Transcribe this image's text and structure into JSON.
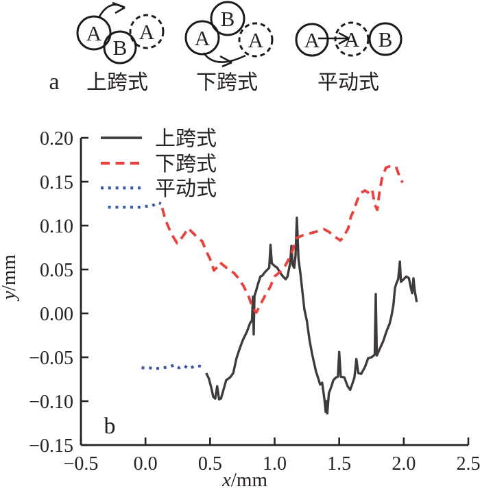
{
  "panel_a": {
    "label": "a",
    "diagrams": [
      {
        "caption": "上跨式",
        "motion": "arc-over-top",
        "circle_labels": [
          "A",
          "B",
          "A"
        ]
      },
      {
        "caption": "下跨式",
        "motion": "arc-under-bottom",
        "circle_labels": [
          "A",
          "B",
          "A"
        ]
      },
      {
        "caption": "平动式",
        "motion": "straight-right",
        "circle_labels": [
          "A",
          "A",
          "B"
        ]
      }
    ]
  },
  "panel_b_label": "b",
  "colors": {
    "axis_text": "#26211f",
    "series_solid": "#3f3b3a",
    "series_dashed": "#e8403c",
    "series_dotted": "#3b5aa6"
  },
  "chart_data": {
    "type": "line",
    "title": "",
    "xlabel_var": "x",
    "xlabel_unit": "/mm",
    "ylabel_var": "y",
    "ylabel_unit": "/mm",
    "xlim": [
      -0.5,
      2.5
    ],
    "ylim": [
      -0.15,
      0.2
    ],
    "grid": false,
    "legend_position": "top-left-inside",
    "xticks": [
      {
        "v": -0.5,
        "label": "−0.5"
      },
      {
        "v": 0.0,
        "label": "0.0"
      },
      {
        "v": 0.5,
        "label": "0.5"
      },
      {
        "v": 1.0,
        "label": "1.0"
      },
      {
        "v": 1.5,
        "label": "1.5"
      },
      {
        "v": 2.0,
        "label": "2.0"
      },
      {
        "v": 2.5,
        "label": "2.5"
      }
    ],
    "yticks": [
      {
        "v": 0.2,
        "label": "0.20"
      },
      {
        "v": 0.15,
        "label": "0.15"
      },
      {
        "v": 0.1,
        "label": "0.10"
      },
      {
        "v": 0.05,
        "label": "0.05"
      },
      {
        "v": 0.0,
        "label": "0.00"
      },
      {
        "v": -0.05,
        "label": "−0.05"
      },
      {
        "v": -0.1,
        "label": "−0.10"
      },
      {
        "v": -0.15,
        "label": "−0.15"
      }
    ],
    "series": [
      {
        "name": "上跨式",
        "style": "solid",
        "color": "#3f3b3a",
        "width": 3.4,
        "dash": "",
        "segments": [
          [
            [
              0.47,
              -0.068
            ],
            [
              0.49,
              -0.074
            ],
            [
              0.51,
              -0.085
            ],
            [
              0.525,
              -0.095
            ],
            [
              0.54,
              -0.097
            ],
            [
              0.555,
              -0.083
            ],
            [
              0.57,
              -0.098
            ],
            [
              0.585,
              -0.097
            ],
            [
              0.6,
              -0.089
            ],
            [
              0.625,
              -0.076
            ],
            [
              0.655,
              -0.073
            ],
            [
              0.68,
              -0.068
            ],
            [
              0.705,
              -0.051
            ],
            [
              0.73,
              -0.04
            ],
            [
              0.755,
              -0.03
            ],
            [
              0.785,
              -0.021
            ],
            [
              0.81,
              -0.011
            ],
            [
              0.825,
              -0.008
            ],
            [
              0.832,
              0.019
            ],
            [
              0.838,
              -0.024
            ],
            [
              0.844,
              0.02
            ],
            [
              0.855,
              0.025
            ],
            [
              0.87,
              0.033
            ],
            [
              0.89,
              0.042
            ],
            [
              0.905,
              0.043
            ],
            [
              0.925,
              0.047
            ],
            [
              0.945,
              0.05
            ],
            [
              0.958,
              0.052
            ],
            [
              0.968,
              0.078
            ],
            [
              0.978,
              0.057
            ],
            [
              1.0,
              0.054
            ],
            [
              1.02,
              0.052
            ],
            [
              1.04,
              0.047
            ],
            [
              1.065,
              0.042
            ],
            [
              1.085,
              0.039
            ],
            [
              1.1,
              0.042
            ],
            [
              1.12,
              0.057
            ],
            [
              1.13,
              0.077
            ],
            [
              1.14,
              0.055
            ],
            [
              1.152,
              0.052
            ],
            [
              1.162,
              0.066
            ],
            [
              1.172,
              0.109
            ],
            [
              1.185,
              0.062
            ],
            [
              1.2,
              0.045
            ],
            [
              1.215,
              0.025
            ],
            [
              1.23,
              0.005
            ],
            [
              1.25,
              -0.009
            ],
            [
              1.27,
              -0.03
            ],
            [
              1.29,
              -0.046
            ],
            [
              1.305,
              -0.056
            ],
            [
              1.32,
              -0.066
            ],
            [
              1.34,
              -0.075
            ],
            [
              1.352,
              -0.081
            ],
            [
              1.368,
              -0.079
            ],
            [
              1.385,
              -0.097
            ],
            [
              1.395,
              -0.112
            ],
            [
              1.402,
              -0.1
            ],
            [
              1.408,
              -0.114
            ],
            [
              1.42,
              -0.091
            ],
            [
              1.44,
              -0.083
            ],
            [
              1.455,
              -0.076
            ],
            [
              1.475,
              -0.073
            ],
            [
              1.49,
              -0.072
            ],
            [
              1.5,
              -0.044
            ],
            [
              1.512,
              -0.072
            ],
            [
              1.54,
              -0.073
            ],
            [
              1.565,
              -0.083
            ],
            [
              1.585,
              -0.087
            ],
            [
              1.6,
              -0.081
            ],
            [
              1.618,
              -0.073
            ],
            [
              1.633,
              -0.052
            ],
            [
              1.648,
              -0.068
            ],
            [
              1.67,
              -0.069
            ],
            [
              1.7,
              -0.061
            ],
            [
              1.724,
              -0.051
            ],
            [
              1.75,
              -0.05
            ],
            [
              1.775,
              -0.047
            ],
            [
              1.783,
              0.022
            ],
            [
              1.791,
              -0.048
            ],
            [
              1.815,
              -0.04
            ],
            [
              1.84,
              -0.032
            ],
            [
              1.865,
              -0.021
            ],
            [
              1.89,
              -0.012
            ],
            [
              1.905,
              -0.003
            ],
            [
              1.92,
              0.01
            ],
            [
              1.932,
              0.029
            ],
            [
              1.945,
              0.035
            ],
            [
              1.957,
              0.039
            ],
            [
              1.97,
              0.059
            ],
            [
              1.978,
              0.036
            ],
            [
              2.0,
              0.039
            ],
            [
              2.02,
              0.042
            ],
            [
              2.04,
              0.04
            ],
            [
              2.055,
              0.029
            ],
            [
              2.065,
              0.023
            ],
            [
              2.075,
              0.04
            ],
            [
              2.085,
              0.026
            ],
            [
              2.1,
              0.013
            ]
          ]
        ]
      },
      {
        "name": "下跨式",
        "style": "dashed",
        "color": "#e8403c",
        "width": 3.8,
        "dash": "13 8.5",
        "segments": [
          [
            [
              0.13,
              0.12
            ],
            [
              0.155,
              0.106
            ],
            [
              0.185,
              0.096
            ],
            [
              0.215,
              0.087
            ],
            [
              0.245,
              0.08
            ],
            [
              0.27,
              0.084
            ],
            [
              0.3,
              0.09
            ],
            [
              0.33,
              0.097
            ],
            [
              0.365,
              0.092
            ],
            [
              0.405,
              0.086
            ],
            [
              0.44,
              0.082
            ],
            [
              0.47,
              0.071
            ],
            [
              0.5,
              0.062
            ],
            [
              0.53,
              0.049
            ],
            [
              0.557,
              0.053
            ],
            [
              0.578,
              0.058
            ],
            [
              0.61,
              0.054
            ],
            [
              0.645,
              0.05
            ],
            [
              0.685,
              0.046
            ],
            [
              0.72,
              0.04
            ],
            [
              0.76,
              0.031
            ],
            [
              0.8,
              0.019
            ],
            [
              0.83,
              0.006
            ],
            [
              0.858,
              0.001
            ],
            [
              0.89,
              0.01
            ],
            [
              0.925,
              0.02
            ],
            [
              0.965,
              0.03
            ],
            [
              1.0,
              0.042
            ],
            [
              1.04,
              0.047
            ],
            [
              1.08,
              0.054
            ],
            [
              1.11,
              0.062
            ],
            [
              1.14,
              0.072
            ],
            [
              1.17,
              0.086
            ],
            [
              1.22,
              0.089
            ],
            [
              1.27,
              0.091
            ],
            [
              1.32,
              0.093
            ],
            [
              1.38,
              0.096
            ],
            [
              1.42,
              0.093
            ],
            [
              1.46,
              0.088
            ],
            [
              1.51,
              0.083
            ],
            [
              1.54,
              0.089
            ],
            [
              1.57,
              0.097
            ],
            [
              1.59,
              0.11
            ],
            [
              1.615,
              0.118
            ],
            [
              1.64,
              0.129
            ],
            [
              1.665,
              0.137
            ],
            [
              1.7,
              0.14
            ],
            [
              1.73,
              0.137
            ],
            [
              1.755,
              0.141
            ],
            [
              1.775,
              0.124
            ],
            [
              1.795,
              0.118
            ],
            [
              1.812,
              0.138
            ],
            [
              1.83,
              0.153
            ],
            [
              1.862,
              0.166
            ],
            [
              1.9,
              0.168
            ],
            [
              1.94,
              0.167
            ],
            [
              1.965,
              0.157
            ],
            [
              1.99,
              0.149
            ]
          ]
        ]
      },
      {
        "name": "平动式",
        "style": "dotted",
        "color": "#3b5aa6",
        "width": 4.2,
        "dash": "4 6.8",
        "segments": [
          [
            [
              -0.29,
              0.121
            ],
            [
              -0.24,
              0.121
            ],
            [
              -0.19,
              0.121
            ],
            [
              -0.14,
              0.121
            ],
            [
              -0.09,
              0.121
            ],
            [
              -0.04,
              0.121
            ],
            [
              0.0,
              0.122
            ],
            [
              0.04,
              0.122
            ],
            [
              0.07,
              0.124
            ],
            [
              0.1,
              0.126
            ],
            [
              0.12,
              0.125
            ]
          ],
          [
            [
              -0.03,
              -0.062
            ],
            [
              0.03,
              -0.062
            ],
            [
              0.08,
              -0.063
            ],
            [
              0.13,
              -0.062
            ],
            [
              0.18,
              -0.061
            ],
            [
              0.22,
              -0.059
            ],
            [
              0.26,
              -0.062
            ],
            [
              0.3,
              -0.06
            ],
            [
              0.34,
              -0.063
            ],
            [
              0.38,
              -0.06
            ],
            [
              0.42,
              -0.06
            ],
            [
              0.46,
              -0.062
            ]
          ]
        ]
      }
    ]
  }
}
